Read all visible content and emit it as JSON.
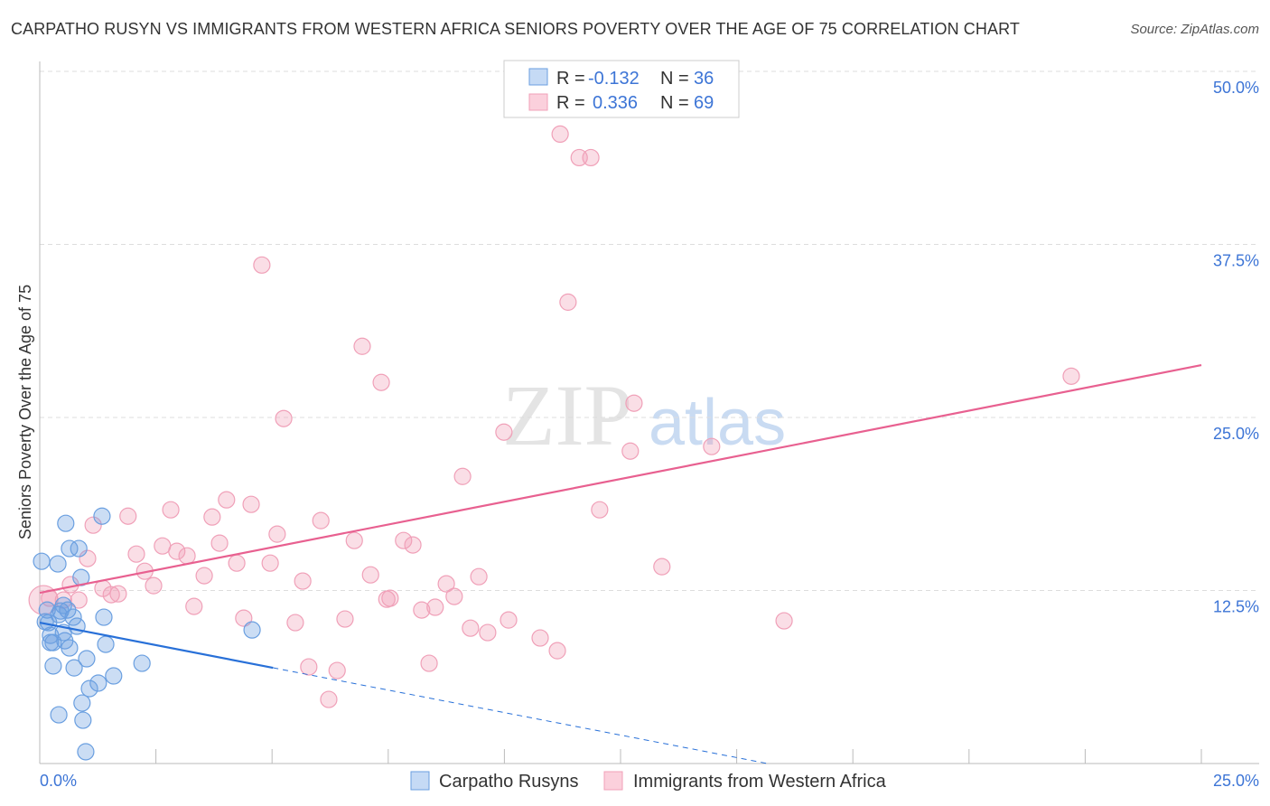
{
  "title": "CARPATHO RUSYN VS IMMIGRANTS FROM WESTERN AFRICA SENIORS POVERTY OVER THE AGE OF 75 CORRELATION CHART",
  "source": "Source: ZipAtlas.com",
  "watermark": "ZIPatlas",
  "chart_data": {
    "type": "scatter",
    "title": "CARPATHO RUSYN VS IMMIGRANTS FROM WESTERN AFRICA SENIORS POVERTY OVER THE AGE OF 75 CORRELATION CHART",
    "xlabel": "",
    "ylabel": "Seniors Poverty Over the Age of 75",
    "xlim": [
      0,
      25
    ],
    "ylim": [
      0,
      50
    ],
    "x_tick_labels": [
      "0.0%",
      "25.0%"
    ],
    "y_ticks": [
      12.5,
      25.0,
      37.5,
      50.0
    ],
    "y_tick_labels": [
      "12.5%",
      "25.0%",
      "37.5%",
      "50.0%"
    ],
    "grid": true,
    "legend_placement": "top-center",
    "stats": [
      {
        "r_label": "R =",
        "r": "-0.132",
        "n_label": "N =",
        "n": "36"
      },
      {
        "r_label": "R =",
        "r": "0.336",
        "n_label": "N =",
        "n": "69"
      }
    ],
    "series": [
      {
        "name": "Carpatho Rusyns",
        "color": "#6a9fe0",
        "line_color": "#2870d8",
        "trend": {
          "intercept": 10.18,
          "slope": -0.65,
          "solid_to": 5.02,
          "dashed_to": 15.7
        },
        "points": [
          [
            0.56,
            17.35
          ],
          [
            1.34,
            17.87
          ],
          [
            0.64,
            15.53
          ],
          [
            0.84,
            15.53
          ],
          [
            0.04,
            14.61
          ],
          [
            0.39,
            14.42
          ],
          [
            0.89,
            13.44
          ],
          [
            0.16,
            11.09
          ],
          [
            0.45,
            11.02
          ],
          [
            0.6,
            11.09
          ],
          [
            0.72,
            10.57
          ],
          [
            1.38,
            10.57
          ],
          [
            0.12,
            10.24
          ],
          [
            0.8,
            9.92
          ],
          [
            4.57,
            9.65
          ],
          [
            0.23,
            9.26
          ],
          [
            0.29,
            8.74
          ],
          [
            0.54,
            8.87
          ],
          [
            0.64,
            8.35
          ],
          [
            1.42,
            8.61
          ],
          [
            1.01,
            7.57
          ],
          [
            2.2,
            7.24
          ],
          [
            0.29,
            7.05
          ],
          [
            0.74,
            6.91
          ],
          [
            1.59,
            6.33
          ],
          [
            1.26,
            5.81
          ],
          [
            1.07,
            5.41
          ],
          [
            0.91,
            4.37
          ],
          [
            0.41,
            3.52
          ],
          [
            0.93,
            3.13
          ],
          [
            0.99,
            0.85
          ],
          [
            0.19,
            10.18
          ],
          [
            0.51,
            9.46
          ],
          [
            0.41,
            10.76
          ],
          [
            0.51,
            11.42
          ],
          [
            0.23,
            8.74
          ]
        ]
      },
      {
        "name": "Immigrants from Western Africa",
        "color": "#f0a0b8",
        "line_color": "#e86090",
        "trend": {
          "intercept": 12.33,
          "slope": 0.658,
          "solid_to": 25
        },
        "points": [
          [
            11.2,
            45.47
          ],
          [
            11.61,
            43.77
          ],
          [
            11.86,
            43.77
          ],
          [
            4.78,
            36.01
          ],
          [
            11.37,
            33.33
          ],
          [
            6.94,
            30.14
          ],
          [
            7.35,
            27.53
          ],
          [
            12.79,
            26.03
          ],
          [
            22.2,
            27.98
          ],
          [
            5.25,
            24.92
          ],
          [
            9.99,
            23.94
          ],
          [
            12.71,
            22.57
          ],
          [
            14.46,
            22.9
          ],
          [
            9.1,
            20.74
          ],
          [
            4.02,
            19.05
          ],
          [
            4.55,
            18.72
          ],
          [
            2.82,
            18.33
          ],
          [
            1.9,
            17.87
          ],
          [
            12.05,
            18.33
          ],
          [
            3.71,
            17.81
          ],
          [
            6.05,
            17.55
          ],
          [
            1.15,
            17.22
          ],
          [
            5.11,
            16.57
          ],
          [
            6.77,
            16.11
          ],
          [
            7.83,
            16.11
          ],
          [
            8.03,
            15.79
          ],
          [
            2.64,
            15.72
          ],
          [
            3.87,
            15.92
          ],
          [
            2.08,
            15.13
          ],
          [
            2.95,
            15.33
          ],
          [
            3.17,
            15.0
          ],
          [
            1.03,
            14.81
          ],
          [
            4.24,
            14.48
          ],
          [
            4.96,
            14.48
          ],
          [
            13.39,
            14.22
          ],
          [
            2.26,
            13.89
          ],
          [
            7.12,
            13.63
          ],
          [
            9.45,
            13.5
          ],
          [
            3.54,
            13.57
          ],
          [
            5.66,
            13.18
          ],
          [
            2.45,
            12.85
          ],
          [
            8.75,
            12.98
          ],
          [
            0.66,
            12.92
          ],
          [
            1.36,
            12.65
          ],
          [
            1.69,
            12.26
          ],
          [
            1.54,
            12.2
          ],
          [
            8.92,
            12.07
          ],
          [
            7.54,
            11.94
          ],
          [
            7.47,
            11.87
          ],
          [
            0.84,
            11.81
          ],
          [
            0.51,
            11.81
          ],
          [
            0.21,
            11.94
          ],
          [
            0.08,
            11.81
          ],
          [
            3.32,
            11.35
          ],
          [
            8.51,
            11.29
          ],
          [
            8.22,
            11.09
          ],
          [
            4.39,
            10.5
          ],
          [
            6.57,
            10.44
          ],
          [
            5.5,
            10.18
          ],
          [
            16.02,
            10.31
          ],
          [
            10.09,
            10.37
          ],
          [
            9.27,
            9.78
          ],
          [
            9.64,
            9.46
          ],
          [
            10.77,
            9.07
          ],
          [
            11.14,
            8.15
          ],
          [
            8.38,
            7.24
          ],
          [
            5.79,
            6.98
          ],
          [
            6.4,
            6.72
          ],
          [
            6.22,
            4.63
          ]
        ]
      }
    ]
  }
}
